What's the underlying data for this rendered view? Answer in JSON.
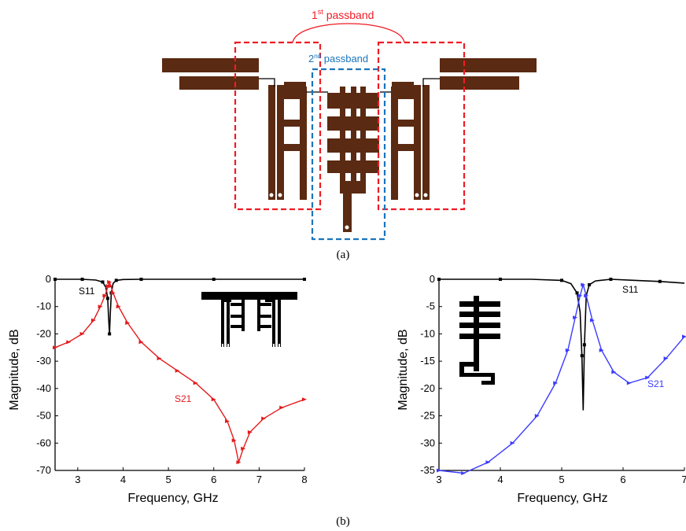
{
  "figure": {
    "caption_a": "(a)",
    "caption_b": "(b)",
    "passband1_label": "1",
    "passband1_sup": "st",
    "passband1_rest": " passband",
    "passband2_label": "2",
    "passband2_sup": "nd",
    "passband2_rest": " passband",
    "colors": {
      "copper": "#5a2a12",
      "passband1": "#ee1c24",
      "passband2": "#1b75bc",
      "s11": "#000000",
      "s21_left": "#e31a1c",
      "s21_right": "#3b3bff"
    }
  },
  "chart_data": [
    {
      "type": "line",
      "xlabel": "Frequency, GHz",
      "ylabel": "Magnitude, dB",
      "xlim": [
        2.5,
        8
      ],
      "ylim": [
        -70,
        0
      ],
      "xticks": [
        3,
        4,
        5,
        6,
        7,
        8
      ],
      "yticks": [
        0,
        -10,
        -20,
        -30,
        -40,
        -50,
        -60,
        -70
      ],
      "series": [
        {
          "name": "S11",
          "x": [
            2.5,
            2.8,
            3.1,
            3.4,
            3.55,
            3.62,
            3.66,
            3.68,
            3.7,
            3.72,
            3.74,
            3.78,
            3.85,
            4.0,
            4.4,
            5.0,
            6.0,
            7.0,
            8.0
          ],
          "y": [
            0,
            0,
            0,
            -0.3,
            -1,
            -3,
            -7,
            -14,
            -20,
            -12,
            -5,
            -1.5,
            -0.4,
            -0.1,
            0,
            0,
            0,
            0,
            0
          ]
        },
        {
          "name": "S21",
          "x": [
            2.5,
            2.8,
            3.1,
            3.35,
            3.5,
            3.6,
            3.67,
            3.7,
            3.73,
            3.78,
            3.9,
            4.1,
            4.4,
            4.8,
            5.2,
            5.6,
            6.0,
            6.3,
            6.45,
            6.55,
            6.65,
            6.8,
            7.1,
            7.5,
            8.0
          ],
          "y": [
            -25,
            -23,
            -20,
            -15,
            -10,
            -6,
            -2.5,
            -1,
            -2.5,
            -5,
            -10,
            -16,
            -23,
            -29,
            -33.5,
            -38,
            -44,
            -52,
            -59,
            -67,
            -62,
            -56,
            -51,
            -47,
            -44
          ]
        }
      ]
    },
    {
      "type": "line",
      "xlabel": "Frequency, GHz",
      "ylabel": "Magnitude, dB",
      "xlim": [
        3,
        7
      ],
      "ylim": [
        -35,
        0
      ],
      "xticks": [
        3,
        4,
        5,
        6,
        7
      ],
      "yticks": [
        0,
        -5,
        -10,
        -15,
        -20,
        -25,
        -30,
        -35
      ],
      "series": [
        {
          "name": "S11",
          "x": [
            3.0,
            3.5,
            4.0,
            4.5,
            5.0,
            5.15,
            5.25,
            5.3,
            5.33,
            5.35,
            5.37,
            5.4,
            5.45,
            5.55,
            5.8,
            6.2,
            6.6,
            7.0
          ],
          "y": [
            0,
            0,
            0,
            0,
            -0.2,
            -0.8,
            -2.5,
            -6,
            -14,
            -24,
            -12,
            -3,
            -1,
            -0.3,
            0,
            -0.2,
            -0.4,
            -0.7
          ]
        },
        {
          "name": "S21",
          "x": [
            3.0,
            3.4,
            3.8,
            4.2,
            4.6,
            4.9,
            5.1,
            5.22,
            5.3,
            5.35,
            5.4,
            5.5,
            5.65,
            5.85,
            6.1,
            6.4,
            6.7,
            7.0
          ],
          "y": [
            -35,
            -35.5,
            -33.5,
            -30,
            -25,
            -19,
            -13,
            -7,
            -3,
            -1,
            -3,
            -7.5,
            -13,
            -17,
            -19,
            -18,
            -14.5,
            -10.5
          ]
        }
      ]
    }
  ]
}
